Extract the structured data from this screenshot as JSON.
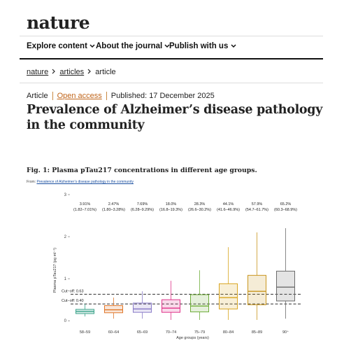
{
  "header": {
    "logo": "nature",
    "nav": [
      "Explore content",
      "About the journal",
      "Publish with us"
    ]
  },
  "breadcrumb": [
    "nature",
    "articles",
    "article"
  ],
  "article": {
    "type": "Article",
    "access": "Open access",
    "published": "Published: 17 December 2025",
    "title": "Prevalence of Alzheimer’s disease pathology in the community"
  },
  "figure": {
    "title": "Fig. 1: Plasma pTau217 concentrations in different age groups.",
    "source_prefix": "From:",
    "source_link": "Prevalence of Alzheimer’s disease pathology in the community"
  },
  "chart_data": {
    "type": "box",
    "y_label": "Plasma pTau217 (pg ml⁻¹)",
    "x_label": "Age groups (years)",
    "categories": [
      "58–59",
      "60–64",
      "65–69",
      "70–74",
      "75–79",
      "80–84",
      "85–89",
      "90⁺"
    ],
    "colors": [
      "#3aa38a",
      "#e0772a",
      "#8a7cc8",
      "#e0338a",
      "#6fae3a",
      "#d9a520",
      "#c8961e",
      "#6b6b6b"
    ],
    "whisker_low": [
      0.1,
      0.05,
      0.05,
      0.02,
      0.02,
      0.02,
      0.02,
      0.05
    ],
    "q1": [
      0.17,
      0.19,
      0.2,
      0.2,
      0.21,
      0.28,
      0.38,
      0.47
    ],
    "median": [
      0.22,
      0.26,
      0.28,
      0.3,
      0.35,
      0.55,
      0.7,
      0.8
    ],
    "q3": [
      0.27,
      0.36,
      0.42,
      0.5,
      0.62,
      0.88,
      1.08,
      1.18
    ],
    "whisker_high": [
      0.4,
      0.55,
      0.7,
      0.95,
      1.2,
      1.75,
      2.1,
      2.2
    ],
    "prevalence": [
      3.91,
      2.47,
      7.69,
      18.0,
      28.3,
      44.1,
      57.9,
      65.2
    ],
    "prevalence_labels": [
      "3.91%",
      "2.47%",
      "7.69%",
      "18.0%",
      "28.3%",
      "44.1%",
      "57.9%",
      "65.2%"
    ],
    "ci_labels": [
      "(1.82–7.01%)",
      "(1.80–3.28%)",
      "(6.28–9.29%)",
      "(16.8–19.3%)",
      "(26.6–30.2%)",
      "(41.6–46.9%)",
      "(54.7–61.7%)",
      "(60.3–68.9%)"
    ],
    "cutoffs": [
      {
        "value": 0.63,
        "label": "Cut−off: 0.63"
      },
      {
        "value": 0.4,
        "label": "Cut−off: 0.40"
      }
    ],
    "ylim": [
      -0.13,
      3.1
    ],
    "yticks": [
      0,
      1,
      2,
      3
    ]
  }
}
